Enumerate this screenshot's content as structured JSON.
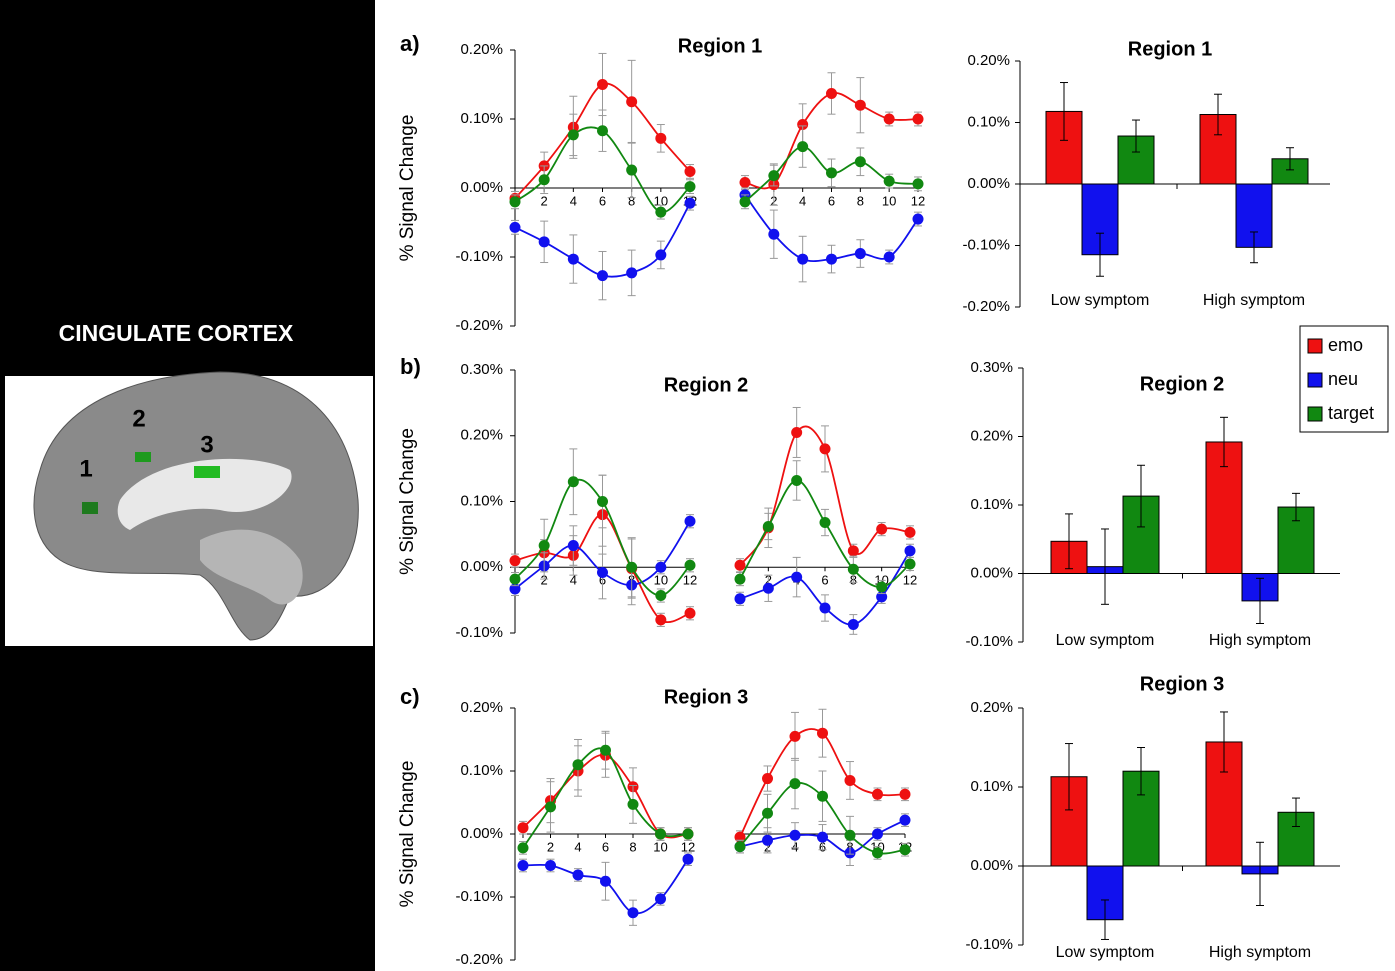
{
  "figure": {
    "label": "CINGULATE CORTEX",
    "regions": [
      "1",
      "2",
      "3"
    ]
  },
  "chart_data": [
    {
      "type": "line",
      "panel": "a)",
      "title": "Region 1",
      "ylabel": "% Signal Change",
      "x": [
        0,
        2,
        4,
        6,
        8,
        10,
        12
      ],
      "xlim": [
        0,
        12
      ],
      "xticks": [
        0,
        2,
        4,
        6,
        8,
        10,
        12
      ],
      "ylim": [
        -0.2,
        0.2
      ],
      "yticks": [
        {
          "value": -0.2,
          "label": "-0.20%"
        },
        {
          "value": -0.1,
          "label": "-0.10%"
        },
        {
          "value": 0,
          "label": "0.00%"
        },
        {
          "value": 0.1,
          "label": "0.10%"
        },
        {
          "value": 0.2,
          "label": "0.20%"
        }
      ],
      "groups": [
        {
          "series": [
            {
              "color": "#ee1111",
              "values": [
                -0.015,
                0.032,
                0.088,
                0.15,
                0.125,
                0.072,
                0.024
              ],
              "errors": [
                0.01,
                0.02,
                0.045,
                0.045,
                0.06,
                0.02,
                0.01
              ]
            },
            {
              "color": "#1111ee",
              "values": [
                -0.057,
                -0.078,
                -0.103,
                -0.127,
                -0.123,
                -0.097,
                -0.022
              ],
              "errors": [
                0.01,
                0.03,
                0.035,
                0.035,
                0.033,
                0.02,
                0.01
              ]
            },
            {
              "color": "#118811",
              "values": [
                -0.02,
                0.012,
                0.077,
                0.083,
                0.026,
                -0.035,
                0.002
              ],
              "errors": [
                0.01,
                0.02,
                0.03,
                0.03,
                0.04,
                0.01,
                0.01
              ]
            }
          ]
        },
        {
          "series": [
            {
              "color": "#ee1111",
              "values": [
                0.008,
                0.005,
                0.092,
                0.137,
                0.12,
                0.1,
                0.1
              ],
              "errors": [
                0.01,
                0.03,
                0.03,
                0.03,
                0.04,
                0.01,
                0.01
              ]
            },
            {
              "color": "#1111ee",
              "values": [
                -0.01,
                -0.067,
                -0.103,
                -0.103,
                -0.095,
                -0.1,
                -0.045
              ],
              "errors": [
                0.01,
                0.035,
                0.033,
                0.02,
                0.02,
                0.01,
                0.01
              ]
            },
            {
              "color": "#118811",
              "values": [
                -0.02,
                0.018,
                0.06,
                0.022,
                0.038,
                0.01,
                0.006
              ],
              "errors": [
                0.01,
                0.015,
                0.03,
                0.02,
                0.02,
                0.01,
                0.01
              ]
            }
          ]
        }
      ]
    },
    {
      "type": "bar",
      "title": "Region 1",
      "categories": [
        "Low symptom",
        "High symptom"
      ],
      "ylim": [
        -0.2,
        0.2
      ],
      "yticks": [
        {
          "value": -0.2,
          "label": "-0.20%"
        },
        {
          "value": -0.1,
          "label": "-0.10%"
        },
        {
          "value": 0,
          "label": "0.00%"
        },
        {
          "value": 0.1,
          "label": "0.10%"
        },
        {
          "value": 0.2,
          "label": "0.20%"
        }
      ],
      "series": [
        {
          "color": "#ee1111",
          "values": [
            0.118,
            0.113
          ],
          "errors": [
            0.047,
            0.033
          ]
        },
        {
          "color": "#1111ee",
          "values": [
            -0.115,
            -0.103
          ],
          "errors": [
            0.035,
            0.025
          ]
        },
        {
          "color": "#118811",
          "values": [
            0.078,
            0.041
          ],
          "errors": [
            0.026,
            0.018
          ]
        }
      ]
    },
    {
      "type": "line",
      "panel": "b)",
      "title": "Region 2",
      "ylabel": "% Signal Change",
      "x": [
        0,
        2,
        4,
        6,
        8,
        10,
        12
      ],
      "xlim": [
        0,
        12
      ],
      "xticks": [
        0,
        2,
        4,
        6,
        8,
        10,
        12
      ],
      "ylim": [
        -0.1,
        0.3
      ],
      "yticks": [
        {
          "value": -0.1,
          "label": "-0.10%"
        },
        {
          "value": 0,
          "label": "0.00%"
        },
        {
          "value": 0.1,
          "label": "0.10%"
        },
        {
          "value": 0.2,
          "label": "0.20%"
        },
        {
          "value": 0.3,
          "label": "0.30%"
        }
      ],
      "groups": [
        {
          "series": [
            {
              "color": "#ee1111",
              "values": [
                0.01,
                0.022,
                0.018,
                0.08,
                -0.002,
                -0.08,
                -0.07
              ],
              "errors": [
                0.01,
                0.02,
                0.03,
                0.06,
                0.045,
                0.01,
                0.01
              ]
            },
            {
              "color": "#1111ee",
              "values": [
                -0.033,
                0.002,
                0.033,
                -0.008,
                -0.027,
                0,
                0.07
              ],
              "errors": [
                0.01,
                0.02,
                0.03,
                0.04,
                0.03,
                0.01,
                0.01
              ]
            },
            {
              "color": "#118811",
              "values": [
                -0.018,
                0.033,
                0.13,
                0.1,
                0,
                -0.043,
                0.003
              ],
              "errors": [
                0.01,
                0.04,
                0.05,
                0.04,
                0.045,
                0.01,
                0.01
              ]
            }
          ]
        },
        {
          "series": [
            {
              "color": "#ee1111",
              "values": [
                0.003,
                0.06,
                0.205,
                0.18,
                0.025,
                0.058,
                0.053
              ],
              "errors": [
                0.01,
                0.03,
                0.038,
                0.035,
                0.01,
                0.01,
                0.01
              ]
            },
            {
              "color": "#1111ee",
              "values": [
                -0.048,
                -0.032,
                -0.015,
                -0.062,
                -0.087,
                -0.045,
                0.025
              ],
              "errors": [
                0.01,
                0.02,
                0.03,
                0.02,
                0.015,
                0.01,
                0.01
              ]
            },
            {
              "color": "#118811",
              "values": [
                -0.018,
                0.062,
                0.132,
                0.068,
                -0.003,
                -0.03,
                0.005
              ],
              "errors": [
                0.01,
                0.02,
                0.03,
                0.02,
                0.02,
                0.01,
                0.01
              ]
            }
          ]
        }
      ]
    },
    {
      "type": "bar",
      "title": "Region 2",
      "categories": [
        "Low symptom",
        "High symptom"
      ],
      "ylim": [
        -0.1,
        0.3
      ],
      "legend": "right",
      "yticks": [
        {
          "value": -0.1,
          "label": "-0.10%"
        },
        {
          "value": 0,
          "label": "0.00%"
        },
        {
          "value": 0.1,
          "label": "0.10%"
        },
        {
          "value": 0.2,
          "label": "0.20%"
        },
        {
          "value": 0.3,
          "label": "0.30%"
        }
      ],
      "series": [
        {
          "name": "emo",
          "color": "#ee1111",
          "values": [
            0.047,
            0.192
          ],
          "errors": [
            0.04,
            0.036
          ]
        },
        {
          "name": "neu",
          "color": "#1111ee",
          "values": [
            0.01,
            -0.04
          ],
          "errors": [
            0.055,
            0.033
          ]
        },
        {
          "name": "target",
          "color": "#118811",
          "values": [
            0.113,
            0.097
          ],
          "errors": [
            0.045,
            0.02
          ]
        }
      ]
    },
    {
      "type": "line",
      "panel": "c)",
      "title": "Region 3",
      "ylabel": "% Signal Change",
      "x": [
        0,
        2,
        4,
        6,
        8,
        10,
        12
      ],
      "xlim": [
        0,
        12
      ],
      "xticks": [
        0,
        2,
        4,
        6,
        8,
        10,
        12
      ],
      "ylim": [
        -0.2,
        0.2
      ],
      "yticks": [
        {
          "value": -0.2,
          "label": "-0.20%"
        },
        {
          "value": -0.1,
          "label": "-0.10%"
        },
        {
          "value": 0,
          "label": "0.00%"
        },
        {
          "value": 0.1,
          "label": "0.10%"
        },
        {
          "value": 0.2,
          "label": "0.20%"
        }
      ],
      "groups": [
        {
          "series": [
            {
              "color": "#ee1111",
              "values": [
                0.01,
                0.053,
                0.1,
                0.125,
                0.075,
                0,
                0
              ],
              "errors": [
                0.01,
                0.035,
                0.04,
                0.035,
                0.03,
                0.01,
                0.01
              ]
            },
            {
              "color": "#1111ee",
              "values": [
                -0.05,
                -0.05,
                -0.065,
                -0.075,
                -0.125,
                -0.103,
                -0.04
              ],
              "errors": [
                0.01,
                0.01,
                0.01,
                0.03,
                0.02,
                0.01,
                0.01
              ]
            },
            {
              "color": "#118811",
              "values": [
                -0.022,
                0.043,
                0.11,
                0.133,
                0.047,
                0,
                0
              ],
              "errors": [
                0.01,
                0.04,
                0.04,
                0.03,
                0.03,
                0.01,
                0.01
              ]
            }
          ]
        },
        {
          "series": [
            {
              "color": "#ee1111",
              "values": [
                -0.005,
                0.088,
                0.155,
                0.16,
                0.085,
                0.063,
                0.063
              ],
              "errors": [
                0.01,
                0.02,
                0.038,
                0.038,
                0.03,
                0.01,
                0.01
              ]
            },
            {
              "color": "#1111ee",
              "values": [
                -0.02,
                -0.01,
                -0.002,
                -0.005,
                -0.03,
                0,
                0.022
              ],
              "errors": [
                0.01,
                0.02,
                0.02,
                0.02,
                0.02,
                0.01,
                0.01
              ]
            },
            {
              "color": "#118811",
              "values": [
                -0.02,
                0.033,
                0.08,
                0.06,
                -0.002,
                -0.03,
                -0.025
              ],
              "errors": [
                0.01,
                0.03,
                0.04,
                0.04,
                0.03,
                0.01,
                0.01
              ]
            }
          ]
        }
      ]
    },
    {
      "type": "bar",
      "title": "Region 3",
      "categories": [
        "Low symptom",
        "High symptom"
      ],
      "ylim": [
        -0.1,
        0.2
      ],
      "yticks": [
        {
          "value": -0.1,
          "label": "-0.10%"
        },
        {
          "value": 0,
          "label": "0.00%"
        },
        {
          "value": 0.1,
          "label": "0.10%"
        },
        {
          "value": 0.2,
          "label": "0.20%"
        }
      ],
      "series": [
        {
          "color": "#ee1111",
          "values": [
            0.113,
            0.157
          ],
          "errors": [
            0.042,
            0.038
          ]
        },
        {
          "color": "#1111ee",
          "values": [
            -0.068,
            -0.01
          ],
          "errors": [
            0.025,
            0.04
          ]
        },
        {
          "color": "#118811",
          "values": [
            0.12,
            0.068
          ],
          "errors": [
            0.03,
            0.018
          ]
        }
      ]
    }
  ]
}
